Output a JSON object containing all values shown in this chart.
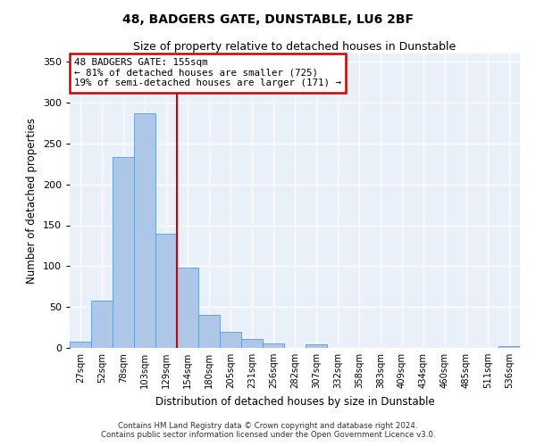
{
  "title": "48, BADGERS GATE, DUNSTABLE, LU6 2BF",
  "subtitle": "Size of property relative to detached houses in Dunstable",
  "xlabel": "Distribution of detached houses by size in Dunstable",
  "ylabel": "Number of detached properties",
  "bar_color": "#aec6e8",
  "bar_edge_color": "#5b9bd5",
  "background_color": "#eaf0f9",
  "grid_color": "#ffffff",
  "annotation_box_color": "#cc0000",
  "annotation_line_color": "#cc0000",
  "annotation_text": "48 BADGERS GATE: 155sqm\n← 81% of detached houses are smaller (725)\n19% of semi-detached houses are larger (171) →",
  "categories": [
    "27sqm",
    "52sqm",
    "78sqm",
    "103sqm",
    "129sqm",
    "154sqm",
    "180sqm",
    "205sqm",
    "231sqm",
    "256sqm",
    "282sqm",
    "307sqm",
    "332sqm",
    "358sqm",
    "383sqm",
    "409sqm",
    "434sqm",
    "460sqm",
    "485sqm",
    "511sqm",
    "536sqm"
  ],
  "values": [
    8,
    58,
    233,
    287,
    140,
    98,
    40,
    20,
    11,
    5,
    0,
    4,
    0,
    0,
    0,
    0,
    0,
    0,
    0,
    0,
    2
  ],
  "vline_index": 4.5,
  "ylim": [
    0,
    360
  ],
  "yticks": [
    0,
    50,
    100,
    150,
    200,
    250,
    300,
    350
  ],
  "footer_line1": "Contains HM Land Registry data © Crown copyright and database right 2024.",
  "footer_line2": "Contains public sector information licensed under the Open Government Licence v3.0."
}
